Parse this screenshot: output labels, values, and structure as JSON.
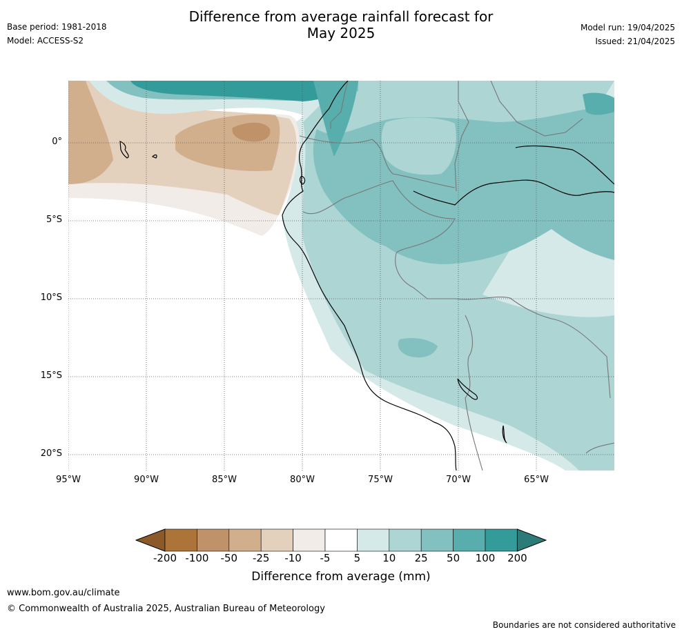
{
  "title": {
    "line1": "Difference from average rainfall forecast for",
    "line2": "May 2025"
  },
  "meta_left": {
    "base_period": "Base period: 1981-2018",
    "model": "Model: ACCESS-S2"
  },
  "meta_right": {
    "model_run": "Model run: 19/04/2025",
    "issued": "Issued: 21/04/2025"
  },
  "map": {
    "lat_labels": [
      "0°",
      "5°S",
      "10°S",
      "15°S",
      "20°S"
    ],
    "lon_labels": [
      "95°W",
      "90°W",
      "85°W",
      "80°W",
      "75°W",
      "70°W",
      "65°W"
    ],
    "colors": {
      "land_outline": "#000000",
      "border": "#777777",
      "grid": "#555555"
    }
  },
  "colorbar": {
    "tick_labels": [
      "-200",
      "-100",
      "-50",
      "-25",
      "-10",
      "-5",
      "5",
      "10",
      "25",
      "50",
      "100",
      "200"
    ],
    "colors": [
      "#8c5a28",
      "#ad743a",
      "#c09269",
      "#d2af8c",
      "#e3d0bd",
      "#f1ece8",
      "#ffffff",
      "#d5e9e8",
      "#acd5d4",
      "#82c1c0",
      "#58aeac",
      "#339b99",
      "#2c7b79"
    ],
    "label": "Difference from average (mm)"
  },
  "footer": {
    "url": "www.bom.gov.au/climate",
    "copyright": "© Commonwealth of Australia 2025, Australian Bureau of Meteorology",
    "note": "Boundaries are not considered authoritative"
  }
}
